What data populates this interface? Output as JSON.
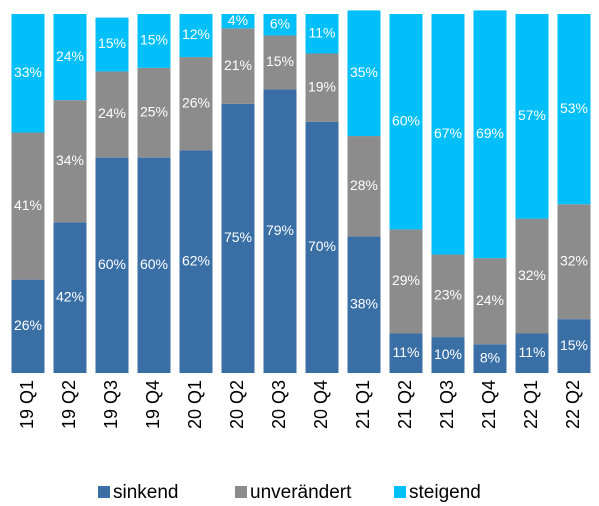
{
  "chart_data": {
    "type": "stacked_bar",
    "categories": [
      "19 Q1",
      "19 Q2",
      "19 Q3",
      "19 Q4",
      "20 Q1",
      "20 Q2",
      "20 Q3",
      "20 Q4",
      "21 Q1",
      "21 Q2",
      "21 Q3",
      "21 Q4",
      "22 Q1",
      "22 Q2"
    ],
    "series": [
      {
        "name": "sinkend",
        "color": "#3a6fa6",
        "values": [
          26,
          42,
          60,
          60,
          62,
          75,
          79,
          70,
          38,
          11,
          10,
          8,
          11,
          15
        ],
        "value_labels": [
          "26%",
          "42%",
          "60%",
          "60%",
          "62%",
          "75%",
          "79%",
          "70%",
          "38%",
          "11%",
          "10%",
          "8%",
          "11%",
          "15%"
        ]
      },
      {
        "name": "unverändert",
        "color": "#8c8c8c",
        "values": [
          41,
          34,
          24,
          25,
          26,
          21,
          15,
          19,
          28,
          29,
          23,
          24,
          32,
          32
        ],
        "value_labels": [
          "41%",
          "34%",
          "24%",
          "25%",
          "26%",
          "21%",
          "15%",
          "19%",
          "28%",
          "29%",
          "23%",
          "24%",
          "32%",
          "32%"
        ]
      },
      {
        "name": "steigend",
        "color": "#00bff9",
        "values": [
          33,
          24,
          15,
          15,
          12,
          4,
          6,
          11,
          35,
          60,
          67,
          69,
          57,
          53
        ],
        "value_labels": [
          "33%",
          "24%",
          "15%",
          "15%",
          "12%",
          "4%",
          "6%",
          "11%",
          "35%",
          "60%",
          "67%",
          "69%",
          "57%",
          "53%"
        ]
      }
    ],
    "ylim": [
      0,
      100
    ],
    "legend": "bottom"
  }
}
